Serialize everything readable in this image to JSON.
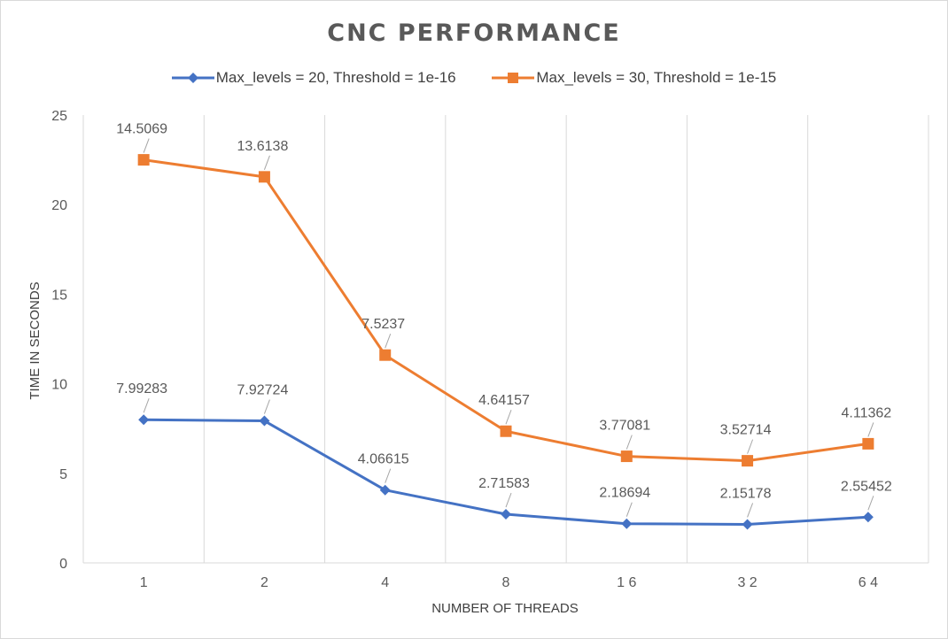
{
  "chart_data": {
    "type": "line",
    "title": "CNC PERFORMANCE",
    "xlabel": "NUMBER OF THREADS",
    "ylabel": "TIME IN SECONDS",
    "categories": [
      "1",
      "2",
      "4",
      "8",
      "1 6",
      "3 2",
      "6 4"
    ],
    "ylim": [
      0,
      25
    ],
    "yticks": [
      "0",
      "5",
      "10",
      "15",
      "20",
      "25"
    ],
    "grid": "vertical",
    "legend": "top",
    "series": [
      {
        "name": "Max_levels = 20, Threshold = 1e-16",
        "color": "#4472c4",
        "marker": "diamond",
        "values": [
          7.99283,
          7.92724,
          4.06615,
          2.71583,
          2.18694,
          2.15178,
          2.55452
        ],
        "labels": [
          "7.99283",
          "7.92724",
          "4.06615",
          "2.71583",
          "2.18694",
          "2.15178",
          "2.55452"
        ]
      },
      {
        "name": "Max_levels = 30, Threshold = 1e-15",
        "color": "#ed7d31",
        "marker": "square",
        "values": [
          22.5,
          21.55,
          11.6,
          7.35,
          5.95,
          5.7,
          6.65
        ],
        "labels": [
          "14.5069",
          "13.6138",
          "7.5237",
          "4.64157",
          "3.77081",
          "3.52714",
          "4.11362"
        ]
      }
    ]
  }
}
